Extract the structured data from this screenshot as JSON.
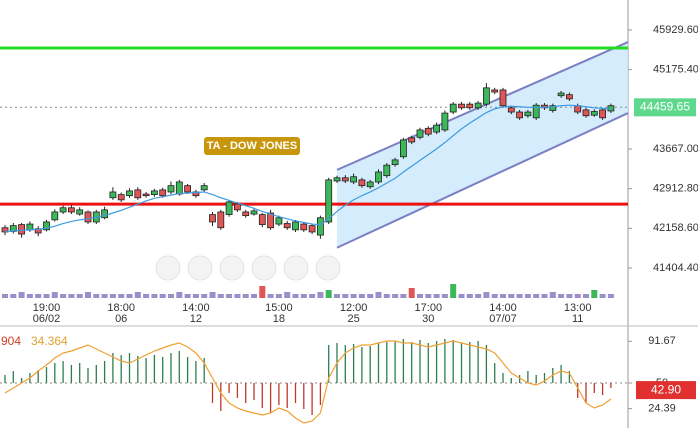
{
  "chart_data": {
    "type": "candlestick",
    "title": "TA - DOW JONES",
    "up_color": "#3cb85a",
    "down_color": "#e05555",
    "categories": [
      null,
      null,
      null,
      null,
      null,
      {
        "time": "19:00",
        "date": "06/02"
      },
      null,
      null,
      null,
      null,
      null,
      null,
      null,
      null,
      {
        "time": "18:00",
        "date": "06"
      },
      null,
      null,
      null,
      null,
      null,
      null,
      null,
      null,
      {
        "time": "14:00",
        "date": "12"
      },
      null,
      null,
      null,
      null,
      null,
      null,
      null,
      null,
      null,
      {
        "time": "15:00",
        "date": "18"
      },
      null,
      null,
      null,
      null,
      null,
      null,
      null,
      null,
      {
        "time": "12:00",
        "date": "25"
      },
      null,
      null,
      null,
      null,
      null,
      null,
      null,
      null,
      {
        "time": "17:00",
        "date": "30"
      },
      null,
      null,
      null,
      null,
      null,
      null,
      null,
      null,
      {
        "time": "14:00",
        "date": "07/07"
      },
      null,
      null,
      null,
      null,
      null,
      null,
      null,
      null,
      {
        "time": "13:00",
        "date": "11"
      },
      null,
      null,
      null,
      null
    ],
    "ohlc": [
      [
        42170,
        42220,
        42030,
        42090
      ],
      [
        42100,
        42260,
        42060,
        42210
      ],
      [
        42230,
        42260,
        41980,
        42050
      ],
      [
        42130,
        42290,
        42090,
        42240
      ],
      [
        42150,
        42200,
        42010,
        42070
      ],
      [
        42130,
        42320,
        42100,
        42280
      ],
      [
        42320,
        42520,
        42290,
        42470
      ],
      [
        42470,
        42590,
        42430,
        42550
      ],
      [
        42550,
        42600,
        42430,
        42470
      ],
      [
        42430,
        42560,
        42400,
        42510
      ],
      [
        42470,
        42500,
        42240,
        42280
      ],
      [
        42280,
        42510,
        42240,
        42470
      ],
      [
        42360,
        42570,
        42330,
        42510
      ],
      [
        42740,
        42940,
        42700,
        42850
      ],
      [
        42800,
        42840,
        42660,
        42700
      ],
      [
        42780,
        42920,
        42740,
        42870
      ],
      [
        42890,
        42940,
        42700,
        42740
      ],
      [
        42810,
        42850,
        42740,
        42780
      ],
      [
        42800,
        42910,
        42760,
        42870
      ],
      [
        42890,
        42930,
        42740,
        42780
      ],
      [
        42850,
        43050,
        42810,
        42970
      ],
      [
        42810,
        43080,
        42780,
        43040
      ],
      [
        42970,
        43000,
        42810,
        42850
      ],
      [
        42850,
        42890,
        42740,
        42780
      ],
      [
        42890,
        43020,
        42850,
        42970
      ],
      [
        42420,
        42470,
        42200,
        42280
      ],
      [
        42470,
        42510,
        42130,
        42170
      ],
      [
        42420,
        42700,
        42380,
        42660
      ],
      [
        42620,
        42660,
        42470,
        42510
      ],
      [
        42470,
        42510,
        42360,
        42400
      ],
      [
        42430,
        42530,
        42400,
        42490
      ],
      [
        42420,
        42450,
        42180,
        42230
      ],
      [
        42450,
        42510,
        42130,
        42170
      ],
      [
        42240,
        42400,
        42200,
        42360
      ],
      [
        42250,
        42300,
        42130,
        42170
      ],
      [
        42130,
        42320,
        42090,
        42280
      ],
      [
        42240,
        42280,
        42090,
        42130
      ],
      [
        42210,
        42240,
        42050,
        42090
      ],
      [
        42030,
        42400,
        41960,
        42360
      ],
      [
        42280,
        43120,
        42240,
        43080
      ],
      [
        43060,
        43160,
        43020,
        43120
      ],
      [
        43120,
        43170,
        43020,
        43060
      ],
      [
        43040,
        43200,
        43000,
        43140
      ],
      [
        43080,
        43120,
        42930,
        42970
      ],
      [
        42950,
        43080,
        42910,
        43040
      ],
      [
        43040,
        43280,
        43000,
        43230
      ],
      [
        43160,
        43400,
        43120,
        43360
      ],
      [
        43370,
        43500,
        43330,
        43460
      ],
      [
        43520,
        43880,
        43480,
        43840
      ],
      [
        43880,
        43920,
        43760,
        43800
      ],
      [
        43890,
        44070,
        43850,
        44030
      ],
      [
        44060,
        44100,
        43910,
        43950
      ],
      [
        43990,
        44170,
        43950,
        44120
      ],
      [
        44030,
        44400,
        43990,
        44350
      ],
      [
        44370,
        44560,
        44330,
        44520
      ],
      [
        44520,
        44560,
        44410,
        44450
      ],
      [
        44520,
        44560,
        44410,
        44450
      ],
      [
        44450,
        44580,
        44410,
        44540
      ],
      [
        44520,
        44920,
        44480,
        44830
      ],
      [
        44790,
        44830,
        44710,
        44750
      ],
      [
        44790,
        44830,
        44450,
        44490
      ],
      [
        44450,
        44490,
        44330,
        44370
      ],
      [
        44370,
        44410,
        44220,
        44260
      ],
      [
        44300,
        44410,
        44260,
        44370
      ],
      [
        44260,
        44540,
        44220,
        44500
      ],
      [
        44500,
        44540,
        44410,
        44450
      ],
      [
        44400,
        44530,
        44360,
        44490
      ],
      [
        44680,
        44770,
        44640,
        44730
      ],
      [
        44700,
        44740,
        44580,
        44620
      ],
      [
        44490,
        44530,
        44330,
        44370
      ],
      [
        44410,
        44450,
        44260,
        44300
      ],
      [
        44310,
        44420,
        44280,
        44380
      ],
      [
        44410,
        44450,
        44220,
        44260
      ],
      [
        44390,
        44530,
        44350,
        44490
      ]
    ],
    "ma": {
      "color": "#3d9be0",
      "values": [
        42100,
        42110,
        42120,
        42130,
        42140,
        42160,
        42200,
        42250,
        42290,
        42320,
        42340,
        42370,
        42400,
        42450,
        42500,
        42560,
        42620,
        42680,
        42730,
        42760,
        42790,
        42820,
        42830,
        42840,
        42850,
        42800,
        42740,
        42690,
        42640,
        42590,
        42540,
        42480,
        42430,
        42380,
        42340,
        42300,
        42270,
        42240,
        42230,
        42340,
        42480,
        42600,
        42700,
        42780,
        42850,
        42930,
        43020,
        43110,
        43230,
        43340,
        43450,
        43560,
        43670,
        43790,
        43920,
        44050,
        44160,
        44260,
        44360,
        44430,
        44470,
        44480,
        44470,
        44460,
        44460,
        44460,
        44470,
        44490,
        44500,
        44490,
        44470,
        44450,
        44440,
        44430
      ]
    },
    "volume": [
      2,
      2,
      3,
      2,
      2,
      2,
      3,
      2,
      2,
      2,
      3,
      2,
      2,
      2,
      2,
      2,
      3,
      2,
      2,
      2,
      2,
      3,
      2,
      2,
      2,
      3,
      2,
      2,
      2,
      2,
      2,
      6,
      2,
      2,
      3,
      2,
      2,
      2,
      3,
      4,
      2,
      2,
      2,
      2,
      2,
      3,
      2,
      2,
      2,
      5,
      2,
      2,
      2,
      2,
      7,
      2,
      2,
      2,
      3,
      2,
      2,
      2,
      2,
      2,
      2,
      2,
      3,
      2,
      2,
      2,
      2,
      4,
      2,
      2
    ],
    "ylim": [
      40796,
      46500
    ],
    "yticks": [
      {
        "value": 45929.6,
        "label": "45929.60"
      },
      {
        "value": 45175.4,
        "label": "45175.40"
      },
      {
        "value": 43667,
        "label": "43667.00"
      },
      {
        "value": 42912.8,
        "label": "42912.80"
      },
      {
        "value": 42158.6,
        "label": "42158.60"
      },
      {
        "value": 41404.4,
        "label": "41404.40"
      }
    ],
    "last_price": 44459.65,
    "hlines": [
      {
        "value": 45588,
        "color": "#22dd22"
      },
      {
        "value": 42620,
        "color": "#ee1111"
      }
    ],
    "channel": {
      "upper": [
        43270,
        45700
      ],
      "lower": [
        41790,
        44350
      ],
      "color": "#7b7fc4",
      "fill": "#cde9fb"
    },
    "indicator": {
      "labels": [
        "904",
        "34.364"
      ],
      "label_colors": [
        "#d04020",
        "#e0a030"
      ],
      "ylim": [
        5,
        103
      ],
      "yticks": [
        91.67,
        50,
        24.39
      ],
      "last": {
        "value": 42.9,
        "label": "42.90"
      },
      "histogram": [
        58,
        62,
        55,
        60,
        63,
        66,
        70,
        72,
        68,
        70,
        65,
        68,
        72,
        80,
        78,
        80,
        77,
        75,
        78,
        76,
        80,
        82,
        76,
        72,
        75,
        30,
        22,
        40,
        35,
        30,
        33,
        25,
        20,
        28,
        25,
        30,
        24,
        18,
        28,
        88,
        90,
        88,
        89,
        86,
        87,
        90,
        91,
        92,
        94,
        91,
        93,
        90,
        92,
        94,
        93,
        90,
        91,
        92,
        88,
        70,
        60,
        55,
        58,
        62,
        58,
        60,
        65,
        68,
        62,
        35,
        30,
        40,
        38,
        45
      ],
      "line": [
        40,
        45,
        50,
        55,
        62,
        68,
        75,
        80,
        82,
        85,
        88,
        84,
        80,
        76,
        72,
        70,
        74,
        78,
        82,
        85,
        88,
        90,
        86,
        80,
        70,
        55,
        40,
        30,
        25,
        22,
        20,
        18,
        20,
        25,
        22,
        15,
        10,
        12,
        20,
        55,
        70,
        80,
        85,
        88,
        88,
        90,
        92,
        92,
        90,
        90,
        88,
        86,
        88,
        90,
        92,
        90,
        88,
        86,
        84,
        80,
        70,
        60,
        55,
        50,
        48,
        52,
        58,
        62,
        60,
        45,
        30,
        25,
        28,
        34
      ],
      "line_color": "#f0a030",
      "up_color": "#2e7d50",
      "down_color": "#c0392b"
    }
  }
}
